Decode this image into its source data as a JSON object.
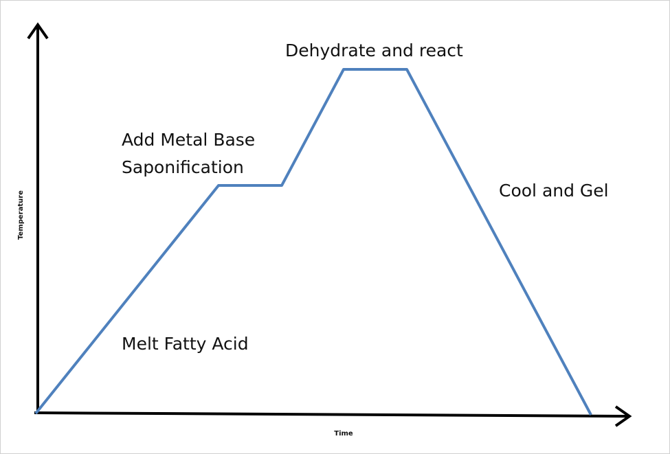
{
  "diagram": {
    "y_axis_label": "Temperature",
    "x_axis_label": "Time",
    "stages": [
      {
        "lines": [
          "Melt Fatty Acid"
        ]
      },
      {
        "lines": [
          "Add Metal Base",
          "Saponification"
        ]
      },
      {
        "lines": [
          "Dehydrate and react"
        ]
      },
      {
        "lines": [
          "Cool and Gel"
        ]
      }
    ]
  }
}
